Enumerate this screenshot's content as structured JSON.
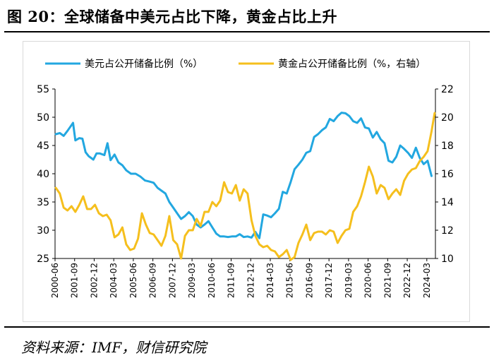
{
  "title": "图 20：全球储备中美元占比下降，黄金占比上升",
  "source": "资料来源：IMF，财信研究院",
  "chart_data": {
    "type": "line",
    "series": [
      {
        "name": "美元占公开储备比例（%）",
        "color": "#22a7e0",
        "axis": "left",
        "points": [
          [
            2000.5,
            47
          ],
          [
            2000.75,
            47.2
          ],
          [
            2001.0,
            46.7
          ],
          [
            2001.25,
            47.6
          ],
          [
            2001.5,
            48.6
          ],
          [
            2001.6,
            49.0
          ],
          [
            2001.75,
            45.9
          ],
          [
            2002.0,
            46.3
          ],
          [
            2002.2,
            46.2
          ],
          [
            2002.4,
            43.8
          ],
          [
            2002.6,
            43.1
          ],
          [
            2002.9,
            42.5
          ],
          [
            2003.1,
            43.6
          ],
          [
            2003.3,
            43.6
          ],
          [
            2003.6,
            43.3
          ],
          [
            2003.8,
            45.4
          ],
          [
            2004.0,
            42.4
          ],
          [
            2004.25,
            43.4
          ],
          [
            2004.5,
            42.0
          ],
          [
            2004.75,
            41.5
          ],
          [
            2005.0,
            40.6
          ],
          [
            2005.3,
            40.0
          ],
          [
            2005.6,
            40.0
          ],
          [
            2005.9,
            39.5
          ],
          [
            2006.2,
            38.8
          ],
          [
            2006.5,
            38.6
          ],
          [
            2006.75,
            38.4
          ],
          [
            2007.0,
            37.5
          ],
          [
            2007.25,
            37.0
          ],
          [
            2007.5,
            36.5
          ],
          [
            2007.75,
            35.0
          ],
          [
            2008.0,
            34.0
          ],
          [
            2008.25,
            33.0
          ],
          [
            2008.5,
            32.0
          ],
          [
            2008.75,
            32.5
          ],
          [
            2009.0,
            33.2
          ],
          [
            2009.25,
            32.5
          ],
          [
            2009.5,
            31.0
          ],
          [
            2009.75,
            30.5
          ],
          [
            2010.0,
            31.0
          ],
          [
            2010.25,
            31.6
          ],
          [
            2010.5,
            30.5
          ],
          [
            2010.75,
            29.4
          ],
          [
            2011.0,
            28.9
          ],
          [
            2011.25,
            28.9
          ],
          [
            2011.5,
            28.8
          ],
          [
            2011.75,
            28.9
          ],
          [
            2012.0,
            28.9
          ],
          [
            2012.25,
            29.3
          ],
          [
            2012.5,
            28.8
          ],
          [
            2012.75,
            28.9
          ],
          [
            2013.0,
            28.7
          ],
          [
            2013.25,
            29.7
          ],
          [
            2013.5,
            28.6
          ],
          [
            2013.75,
            32.8
          ],
          [
            2014.0,
            32.6
          ],
          [
            2014.25,
            32.3
          ],
          [
            2014.5,
            33.0
          ],
          [
            2014.75,
            33.8
          ],
          [
            2015.0,
            36.8
          ],
          [
            2015.25,
            36.5
          ],
          [
            2015.5,
            38.5
          ],
          [
            2015.75,
            40.8
          ],
          [
            2016.0,
            41.6
          ],
          [
            2016.25,
            42.5
          ],
          [
            2016.5,
            43.7
          ],
          [
            2016.75,
            44.0
          ],
          [
            2017.0,
            46.5
          ],
          [
            2017.25,
            47.0
          ],
          [
            2017.5,
            47.7
          ],
          [
            2017.75,
            48.2
          ],
          [
            2018.0,
            49.7
          ],
          [
            2018.25,
            49.3
          ],
          [
            2018.5,
            50.2
          ],
          [
            2018.75,
            50.8
          ],
          [
            2019.0,
            50.7
          ],
          [
            2019.25,
            50.2
          ],
          [
            2019.5,
            49.3
          ],
          [
            2019.75,
            49.0
          ],
          [
            2020.0,
            49.8
          ],
          [
            2020.25,
            48.2
          ],
          [
            2020.5,
            48.0
          ],
          [
            2020.75,
            46.4
          ],
          [
            2021.0,
            47.4
          ],
          [
            2021.25,
            46.1
          ],
          [
            2021.5,
            45.4
          ],
          [
            2021.75,
            42.3
          ],
          [
            2022.0,
            42.0
          ],
          [
            2022.25,
            43.0
          ],
          [
            2022.5,
            45.0
          ],
          [
            2022.75,
            44.4
          ],
          [
            2023.0,
            43.7
          ],
          [
            2023.25,
            42.8
          ],
          [
            2023.5,
            44.6
          ],
          [
            2023.75,
            42.8
          ],
          [
            2024.0,
            41.7
          ],
          [
            2024.25,
            42.3
          ],
          [
            2024.5,
            39.6
          ]
        ]
      },
      {
        "name": "黄金占公开储备比例（%，右轴）",
        "color": "#f5bf1d",
        "axis": "right",
        "points": [
          [
            2000.5,
            15.0
          ],
          [
            2000.75,
            14.6
          ],
          [
            2001.0,
            13.6
          ],
          [
            2001.25,
            13.4
          ],
          [
            2001.5,
            13.7
          ],
          [
            2001.75,
            13.3
          ],
          [
            2002.0,
            13.8
          ],
          [
            2002.25,
            14.4
          ],
          [
            2002.5,
            13.5
          ],
          [
            2002.75,
            13.5
          ],
          [
            2003.0,
            13.8
          ],
          [
            2003.25,
            13.2
          ],
          [
            2003.5,
            13.0
          ],
          [
            2003.75,
            13.1
          ],
          [
            2004.0,
            12.7
          ],
          [
            2004.25,
            11.5
          ],
          [
            2004.5,
            11.7
          ],
          [
            2004.75,
            12.2
          ],
          [
            2005.0,
            11.0
          ],
          [
            2005.25,
            10.6
          ],
          [
            2005.5,
            10.7
          ],
          [
            2005.75,
            11.4
          ],
          [
            2006.0,
            13.2
          ],
          [
            2006.25,
            12.4
          ],
          [
            2006.5,
            11.8
          ],
          [
            2006.75,
            11.7
          ],
          [
            2007.0,
            11.3
          ],
          [
            2007.25,
            10.9
          ],
          [
            2007.5,
            11.6
          ],
          [
            2007.75,
            13.0
          ],
          [
            2008.0,
            11.3
          ],
          [
            2008.25,
            11.0
          ],
          [
            2008.5,
            10.0
          ],
          [
            2008.75,
            11.6
          ],
          [
            2009.0,
            12.0
          ],
          [
            2009.25,
            12.0
          ],
          [
            2009.5,
            12.8
          ],
          [
            2009.75,
            12.3
          ],
          [
            2010.0,
            13.3
          ],
          [
            2010.25,
            13.3
          ],
          [
            2010.5,
            14.0
          ],
          [
            2010.75,
            13.7
          ],
          [
            2011.0,
            14.1
          ],
          [
            2011.25,
            15.4
          ],
          [
            2011.5,
            14.7
          ],
          [
            2011.75,
            14.6
          ],
          [
            2012.0,
            15.2
          ],
          [
            2012.25,
            14.1
          ],
          [
            2012.5,
            14.9
          ],
          [
            2012.75,
            14.6
          ],
          [
            2013.0,
            12.7
          ],
          [
            2013.25,
            11.6
          ],
          [
            2013.5,
            11.0
          ],
          [
            2013.75,
            10.8
          ],
          [
            2014.0,
            10.9
          ],
          [
            2014.25,
            10.6
          ],
          [
            2014.5,
            10.5
          ],
          [
            2014.75,
            10.1
          ],
          [
            2015.0,
            10.3
          ],
          [
            2015.25,
            10.6
          ],
          [
            2015.5,
            9.9
          ],
          [
            2015.75,
            10.1
          ],
          [
            2016.0,
            11.1
          ],
          [
            2016.25,
            11.7
          ],
          [
            2016.5,
            12.4
          ],
          [
            2016.75,
            11.3
          ],
          [
            2017.0,
            11.8
          ],
          [
            2017.25,
            11.9
          ],
          [
            2017.5,
            11.9
          ],
          [
            2017.75,
            11.7
          ],
          [
            2018.0,
            12.0
          ],
          [
            2018.25,
            11.9
          ],
          [
            2018.5,
            11.1
          ],
          [
            2018.75,
            11.6
          ],
          [
            2019.0,
            12.0
          ],
          [
            2019.25,
            12.1
          ],
          [
            2019.5,
            13.3
          ],
          [
            2019.75,
            13.7
          ],
          [
            2020.0,
            14.4
          ],
          [
            2020.25,
            15.4
          ],
          [
            2020.5,
            16.5
          ],
          [
            2020.75,
            15.8
          ],
          [
            2021.0,
            14.6
          ],
          [
            2021.25,
            15.2
          ],
          [
            2021.5,
            15.0
          ],
          [
            2021.75,
            14.2
          ],
          [
            2022.0,
            14.6
          ],
          [
            2022.25,
            14.9
          ],
          [
            2022.5,
            14.5
          ],
          [
            2022.75,
            15.5
          ],
          [
            2023.0,
            16.0
          ],
          [
            2023.25,
            16.3
          ],
          [
            2023.5,
            16.4
          ],
          [
            2023.75,
            16.9
          ],
          [
            2024.0,
            17.2
          ],
          [
            2024.25,
            17.6
          ],
          [
            2024.5,
            19.0
          ],
          [
            2024.7,
            20.3
          ]
        ]
      }
    ],
    "y_left": {
      "min": 25,
      "max": 55,
      "ticks": [
        25,
        30,
        35,
        40,
        45,
        50,
        55
      ]
    },
    "y_right": {
      "min": 10,
      "max": 22,
      "ticks": [
        10,
        12,
        14,
        16,
        18,
        20,
        22
      ]
    },
    "x_range": [
      2000.45,
      2024.75
    ],
    "x_ticks": [
      {
        "label": "2000-06",
        "t": 2000.45
      },
      {
        "label": "2001-09",
        "t": 2001.7
      },
      {
        "label": "2002-12",
        "t": 2002.95
      },
      {
        "label": "2004-03",
        "t": 2004.2
      },
      {
        "label": "2005-06",
        "t": 2005.45
      },
      {
        "label": "2006-09",
        "t": 2006.7
      },
      {
        "label": "2007-12",
        "t": 2007.95
      },
      {
        "label": "2009-03",
        "t": 2009.2
      },
      {
        "label": "2010-06",
        "t": 2010.45
      },
      {
        "label": "2011-09",
        "t": 2011.7
      },
      {
        "label": "2012-12",
        "t": 2012.95
      },
      {
        "label": "2014-03",
        "t": 2014.2
      },
      {
        "label": "2015-06",
        "t": 2015.45
      },
      {
        "label": "2016-09",
        "t": 2016.7
      },
      {
        "label": "2017-12",
        "t": 2017.95
      },
      {
        "label": "2019-03",
        "t": 2019.2
      },
      {
        "label": "2020-06",
        "t": 2020.45
      },
      {
        "label": "2021-09",
        "t": 2021.7
      },
      {
        "label": "2022-12",
        "t": 2022.95
      },
      {
        "label": "2024-03",
        "t": 2024.2
      }
    ],
    "legend": [
      "美元占公开储备比例（%）",
      "黄金占公开储备比例（%，右轴）"
    ]
  }
}
